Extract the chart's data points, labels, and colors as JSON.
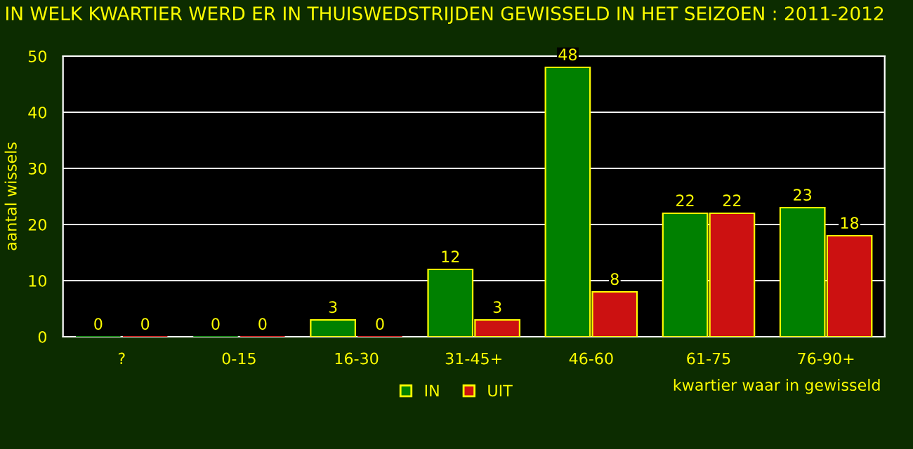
{
  "chart_data": {
    "type": "bar",
    "title": "IN WELK KWARTIER WERD ER IN THUISWEDSTRIJDEN GEWISSELD IN HET SEIZOEN : 2011-2012",
    "xlabel": "kwartier waar in gewisseld",
    "ylabel": "aantal wissels",
    "categories": [
      "?",
      "0-15",
      "16-30",
      "31-45+",
      "46-60",
      "61-75",
      "76-90+"
    ],
    "series": [
      {
        "name": "IN",
        "color": "#008000",
        "values": [
          0,
          0,
          3,
          12,
          48,
          22,
          23
        ]
      },
      {
        "name": "UIT",
        "color": "#cc1111",
        "values": [
          0,
          0,
          0,
          3,
          8,
          22,
          18
        ]
      }
    ],
    "ylim": [
      0,
      50
    ],
    "yticks": [
      0,
      10,
      20,
      30,
      40,
      50
    ],
    "grid": "y",
    "legend": "bottom",
    "data_labels": true
  }
}
